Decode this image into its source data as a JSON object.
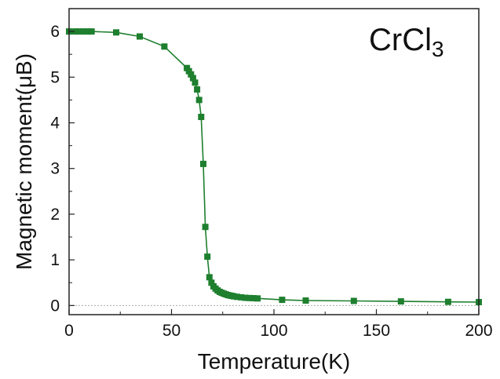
{
  "chart_data": {
    "type": "line",
    "annotation": {
      "base": "CrCl",
      "subscript": "3"
    },
    "xlabel": "Temperature(K)",
    "ylabel": "Magnetic moment(μB)",
    "xlim": [
      0,
      200
    ],
    "ylim": [
      -0.2,
      6.5
    ],
    "xticks": [
      "0",
      "50",
      "100",
      "150",
      "200"
    ],
    "yticks": [
      "0",
      "1",
      "2",
      "3",
      "4",
      "5",
      "6"
    ],
    "reference_line_y": 0,
    "grid": false,
    "colors": {
      "series": "#1e7f2e",
      "reference": "#aaaaaa",
      "axis": "#222222"
    },
    "series": [
      {
        "x": [
          0,
          3,
          5,
          7,
          9,
          11,
          23,
          34.5,
          46.5,
          57.5,
          58.5,
          59.5,
          60.5,
          61.5,
          62.5,
          63.5,
          64.5,
          65.5,
          66.5,
          67.5,
          68.5,
          69.5,
          70.5,
          71.5,
          72.5,
          73.5,
          74.5,
          75.5,
          76.5,
          77.5,
          78.5,
          79.5,
          80.5,
          82,
          84,
          86,
          88,
          90,
          92,
          104,
          115.5,
          139,
          162,
          185,
          200
        ],
        "y": [
          6.0,
          6.0,
          6.0,
          6.0,
          6.0,
          6.0,
          5.98,
          5.89,
          5.67,
          5.2,
          5.13,
          5.06,
          4.98,
          4.88,
          4.73,
          4.5,
          4.13,
          3.1,
          1.72,
          1.07,
          0.62,
          0.5,
          0.42,
          0.37,
          0.33,
          0.3,
          0.28,
          0.26,
          0.245,
          0.23,
          0.22,
          0.21,
          0.2,
          0.19,
          0.18,
          0.17,
          0.165,
          0.16,
          0.155,
          0.125,
          0.11,
          0.1,
          0.09,
          0.08,
          0.075
        ]
      }
    ]
  }
}
